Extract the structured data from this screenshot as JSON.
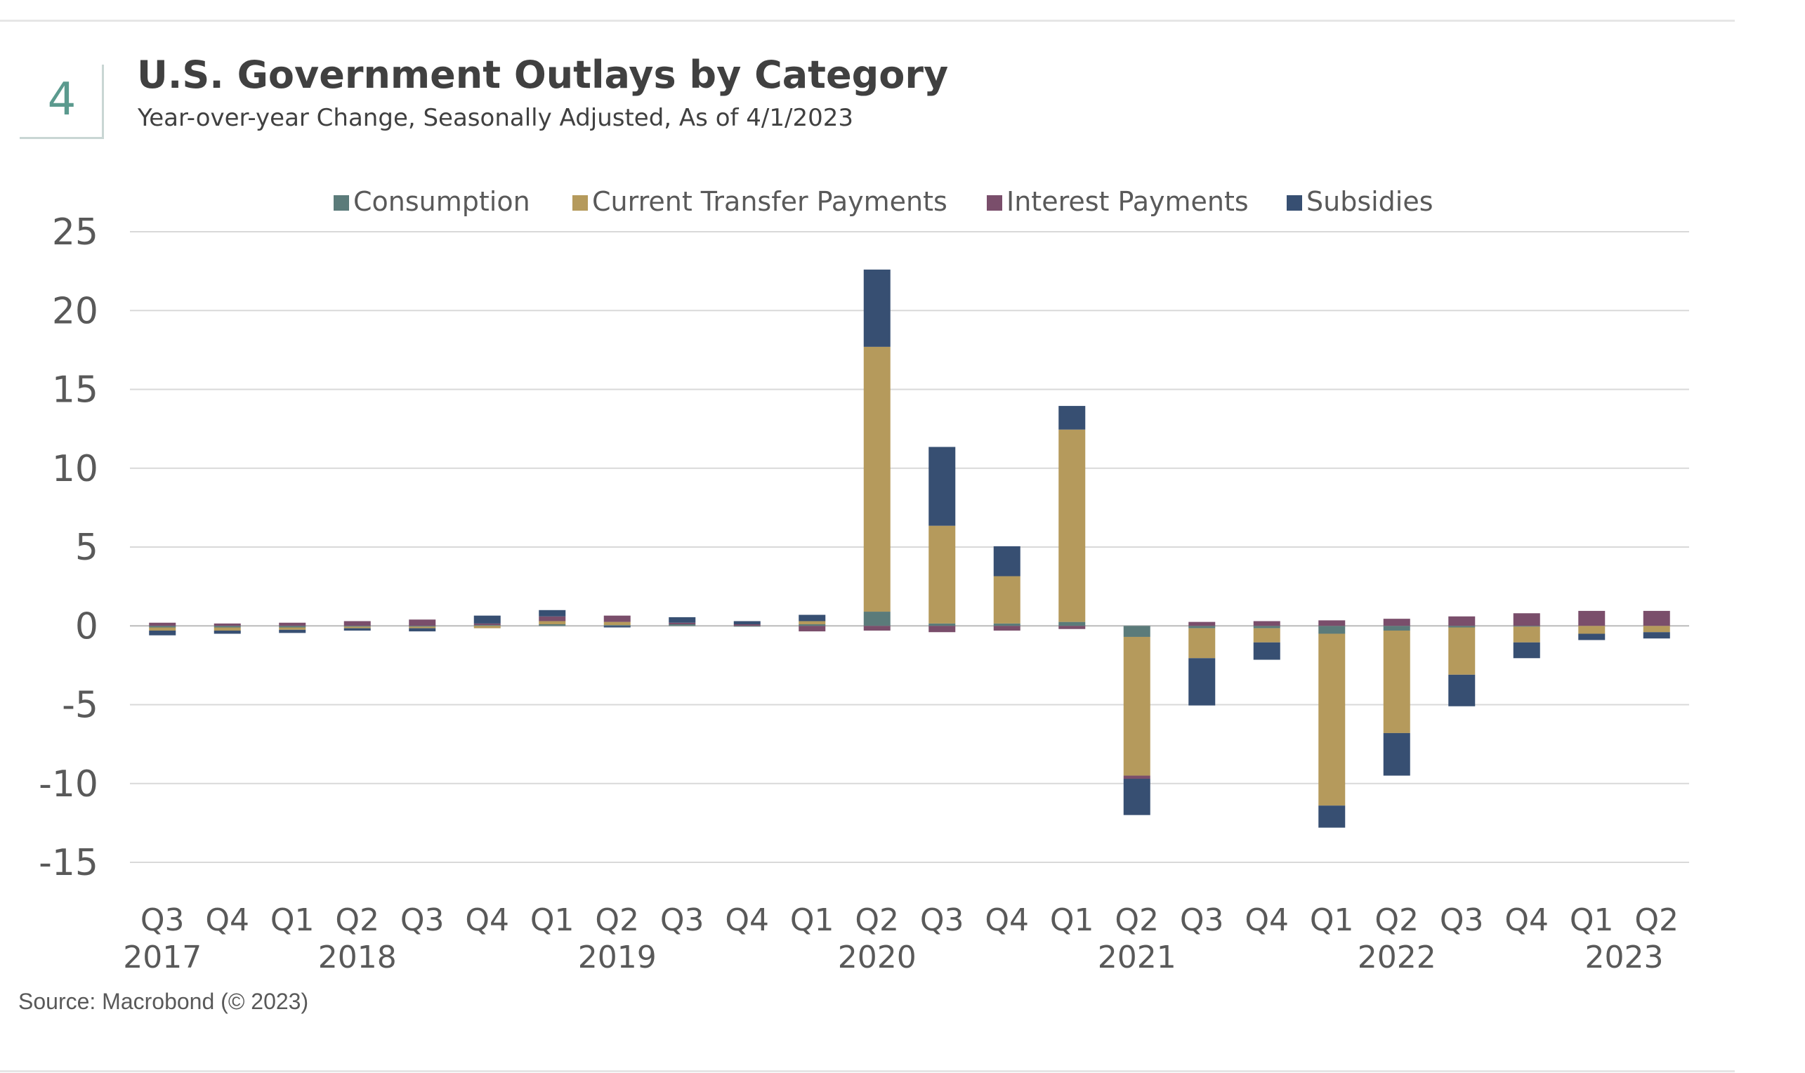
{
  "figure": {
    "number": "4",
    "title": "U.S. Government Outlays by Category",
    "subtitle": "Year-over-year Change, Seasonally Adjusted, As of 4/1/2023",
    "source": "Source: Macrobond (© 2023)"
  },
  "chart_data": {
    "type": "bar",
    "stacked": true,
    "categories": [
      "Q3",
      "Q4",
      "Q1",
      "Q2",
      "Q3",
      "Q4",
      "Q1",
      "Q2",
      "Q3",
      "Q4",
      "Q1",
      "Q2",
      "Q3",
      "Q4",
      "Q1",
      "Q2",
      "Q3",
      "Q4",
      "Q1",
      "Q2",
      "Q3",
      "Q4",
      "Q1",
      "Q2"
    ],
    "year_labels": [
      {
        "label": "2017",
        "start": 0,
        "end": 0
      },
      {
        "label": "2018",
        "start": 2,
        "end": 4
      },
      {
        "label": "2019",
        "start": 6,
        "end": 8
      },
      {
        "label": "2020",
        "start": 10,
        "end": 12
      },
      {
        "label": "2021",
        "start": 14,
        "end": 16
      },
      {
        "label": "2022",
        "start": 18,
        "end": 20
      },
      {
        "label": "2023",
        "start": 22,
        "end": 23
      }
    ],
    "series": [
      {
        "name": "Consumption",
        "color": "#5b7b7a",
        "values": [
          -0.1,
          -0.1,
          -0.1,
          -0.05,
          -0.05,
          0.05,
          0.1,
          0.05,
          0.1,
          -0.05,
          0.1,
          0.9,
          0.15,
          0.15,
          0.25,
          -0.7,
          -0.15,
          -0.15,
          -0.5,
          -0.3,
          -0.1,
          -0.05,
          0.0,
          0.0
        ]
      },
      {
        "name": "Current Transfer Payments",
        "color": "#b59a5c",
        "values": [
          -0.2,
          -0.2,
          -0.15,
          -0.1,
          -0.1,
          -0.15,
          0.2,
          0.2,
          0.0,
          0.0,
          0.2,
          16.8,
          6.2,
          3.0,
          12.2,
          -8.8,
          -1.9,
          -0.9,
          -10.9,
          -6.5,
          -3.0,
          -1.0,
          -0.5,
          -0.4
        ]
      },
      {
        "name": "Interest Payments",
        "color": "#7a4e6b",
        "values": [
          0.2,
          0.15,
          0.2,
          0.3,
          0.4,
          0.1,
          0.3,
          0.4,
          0.1,
          0.1,
          -0.35,
          -0.3,
          -0.4,
          -0.3,
          -0.2,
          -0.2,
          0.25,
          0.3,
          0.35,
          0.45,
          0.6,
          0.8,
          0.95,
          0.95
        ]
      },
      {
        "name": "Subsidies",
        "color": "#374f72",
        "values": [
          -0.3,
          -0.2,
          -0.2,
          -0.15,
          -0.2,
          0.5,
          0.4,
          -0.1,
          0.35,
          0.2,
          0.4,
          4.9,
          5.0,
          1.9,
          1.5,
          -2.3,
          -3.0,
          -1.1,
          -1.4,
          -2.7,
          -2.0,
          -1.0,
          -0.4,
          -0.4
        ]
      }
    ],
    "ylim": [
      -15,
      25
    ],
    "yticks": [
      25,
      20,
      15,
      10,
      5,
      0,
      -5,
      -10,
      -15
    ],
    "xlabel": "",
    "ylabel": "",
    "grid": true,
    "legend": "top"
  }
}
